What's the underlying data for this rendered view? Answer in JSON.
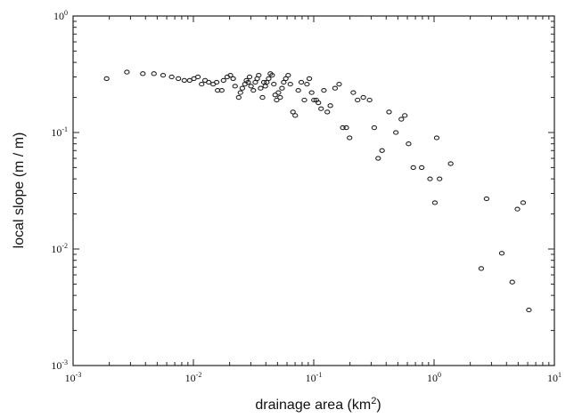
{
  "chart_data": {
    "type": "scatter",
    "title": "",
    "xlabel": "drainage area (km",
    "xlabel_superscript": "2",
    "xlabel_suffix": ")",
    "ylabel": "local slope (m / m)",
    "x_scale": "log",
    "y_scale": "log",
    "xlim": [
      0.001,
      10
    ],
    "ylim": [
      0.001,
      1
    ],
    "grid": false,
    "legend": "none",
    "x_ticks": [
      {
        "base": "10",
        "exp": "-3",
        "value": 0.001
      },
      {
        "base": "10",
        "exp": "-2",
        "value": 0.01
      },
      {
        "base": "10",
        "exp": "-1",
        "value": 0.1
      },
      {
        "base": "10",
        "exp": "0",
        "value": 1
      },
      {
        "base": "10",
        "exp": "1",
        "value": 10
      }
    ],
    "y_ticks": [
      {
        "base": "10",
        "exp": "-3",
        "value": 0.001
      },
      {
        "base": "10",
        "exp": "-2",
        "value": 0.01
      },
      {
        "base": "10",
        "exp": "-1",
        "value": 0.1
      },
      {
        "base": "10",
        "exp": "0",
        "value": 1
      }
    ],
    "points": [
      [
        0.0019,
        0.29
      ],
      [
        0.0028,
        0.33
      ],
      [
        0.0038,
        0.32
      ],
      [
        0.0047,
        0.32
      ],
      [
        0.0056,
        0.31
      ],
      [
        0.0066,
        0.3
      ],
      [
        0.0075,
        0.29
      ],
      [
        0.0084,
        0.28
      ],
      [
        0.0093,
        0.28
      ],
      [
        0.0101,
        0.29
      ],
      [
        0.0109,
        0.3
      ],
      [
        0.0117,
        0.26
      ],
      [
        0.0125,
        0.28
      ],
      [
        0.0134,
        0.27
      ],
      [
        0.0146,
        0.26
      ],
      [
        0.0156,
        0.27
      ],
      [
        0.0159,
        0.23
      ],
      [
        0.0172,
        0.23
      ],
      [
        0.0178,
        0.28
      ],
      [
        0.0191,
        0.3
      ],
      [
        0.0203,
        0.31
      ],
      [
        0.0214,
        0.29
      ],
      [
        0.0222,
        0.25
      ],
      [
        0.0238,
        0.2
      ],
      [
        0.0246,
        0.22
      ],
      [
        0.0255,
        0.24
      ],
      [
        0.0268,
        0.26
      ],
      [
        0.0276,
        0.28
      ],
      [
        0.0285,
        0.27
      ],
      [
        0.0293,
        0.3
      ],
      [
        0.0301,
        0.25
      ],
      [
        0.0315,
        0.23
      ],
      [
        0.0327,
        0.27
      ],
      [
        0.0339,
        0.29
      ],
      [
        0.0349,
        0.31
      ],
      [
        0.0362,
        0.24
      ],
      [
        0.0375,
        0.2
      ],
      [
        0.0385,
        0.27
      ],
      [
        0.0396,
        0.25
      ],
      [
        0.0407,
        0.27
      ],
      [
        0.0422,
        0.29
      ],
      [
        0.0436,
        0.32
      ],
      [
        0.0451,
        0.31
      ],
      [
        0.0466,
        0.26
      ],
      [
        0.0478,
        0.21
      ],
      [
        0.0492,
        0.19
      ],
      [
        0.0509,
        0.22
      ],
      [
        0.0526,
        0.2
      ],
      [
        0.0545,
        0.24
      ],
      [
        0.0563,
        0.27
      ],
      [
        0.0586,
        0.29
      ],
      [
        0.0613,
        0.31
      ],
      [
        0.0639,
        0.26
      ],
      [
        0.0672,
        0.15
      ],
      [
        0.0702,
        0.14
      ],
      [
        0.0744,
        0.23
      ],
      [
        0.0788,
        0.27
      ],
      [
        0.0836,
        0.19
      ],
      [
        0.0878,
        0.26
      ],
      [
        0.0919,
        0.29
      ],
      [
        0.0961,
        0.22
      ],
      [
        0.1004,
        0.19
      ],
      [
        0.1049,
        0.19
      ],
      [
        0.1093,
        0.18
      ],
      [
        0.1151,
        0.16
      ],
      [
        0.1215,
        0.23
      ],
      [
        0.1296,
        0.15
      ],
      [
        0.1374,
        0.17
      ],
      [
        0.1504,
        0.24
      ],
      [
        0.1625,
        0.26
      ],
      [
        0.1744,
        0.11
      ],
      [
        0.1864,
        0.11
      ],
      [
        0.1985,
        0.09
      ],
      [
        0.2133,
        0.22
      ],
      [
        0.2314,
        0.19
      ],
      [
        0.2583,
        0.2
      ],
      [
        0.2911,
        0.19
      ],
      [
        0.3182,
        0.11
      ],
      [
        0.3431,
        0.06
      ],
      [
        0.3697,
        0.07
      ],
      [
        0.4226,
        0.15
      ],
      [
        0.4815,
        0.1
      ],
      [
        0.5345,
        0.13
      ],
      [
        0.5715,
        0.14
      ],
      [
        0.6142,
        0.08
      ],
      [
        0.6723,
        0.05
      ],
      [
        0.7892,
        0.05
      ],
      [
        0.9258,
        0.04
      ],
      [
        1.0159,
        0.025
      ],
      [
        1.0515,
        0.09
      ],
      [
        1.1113,
        0.04
      ],
      [
        1.3747,
        0.054
      ],
      [
        2.4652,
        0.0068
      ],
      [
        2.7318,
        0.027
      ],
      [
        3.6558,
        0.0092
      ],
      [
        4.4641,
        0.0052
      ],
      [
        4.9271,
        0.022
      ],
      [
        5.4995,
        0.025
      ],
      [
        6.1416,
        0.003
      ]
    ]
  }
}
